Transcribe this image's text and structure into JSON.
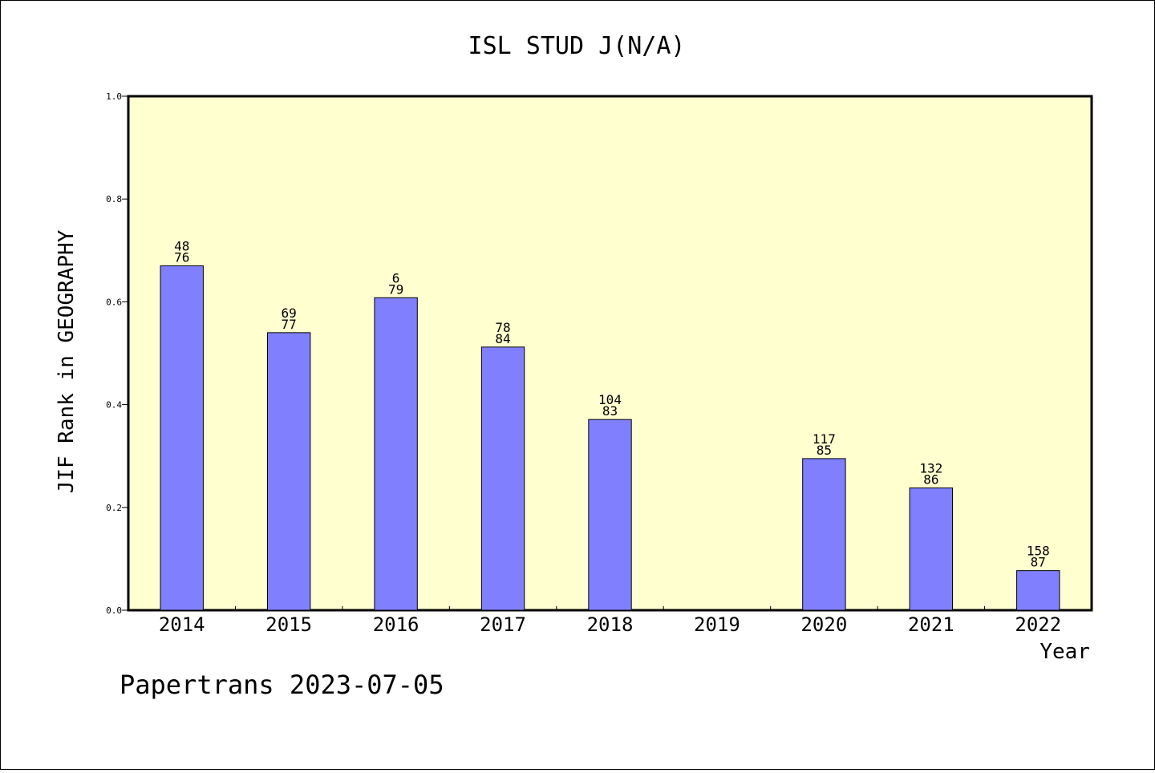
{
  "chart_data": {
    "type": "bar",
    "title": "ISL STUD J(N/A)",
    "xlabel": "Year",
    "ylabel": "JIF Rank in GEOGRAPHY",
    "ylim": [
      0,
      1.0
    ],
    "yticks": [
      "0.0",
      "0.2",
      "0.4",
      "0.6",
      "0.8",
      "1.0"
    ],
    "categories": [
      "2014",
      "2015",
      "2016",
      "2017",
      "2018",
      "2019",
      "2020",
      "2021",
      "2022"
    ],
    "values": [
      0.67,
      0.54,
      0.608,
      0.512,
      0.371,
      null,
      0.295,
      0.238,
      0.077
    ],
    "labels_top": [
      "48",
      "69",
      "6",
      "78",
      "104",
      "",
      "117",
      "132",
      "158"
    ],
    "labels_bottom": [
      "76",
      "77",
      "79",
      "84",
      "83",
      "",
      "85",
      "86",
      "87"
    ],
    "grid": false,
    "colors": {
      "plot_background": "#ffffd0",
      "bar_fill": "#8080ff",
      "bar_stroke": "#000000"
    }
  },
  "footer": {
    "credit": "Papertrans 2023-07-05"
  }
}
